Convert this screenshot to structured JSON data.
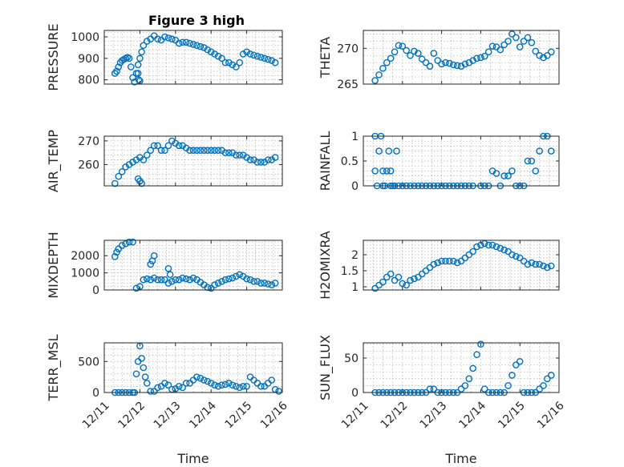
{
  "figure_title": "Figure 3 high",
  "chart_data": [
    {
      "id": "pressure",
      "type": "scatter",
      "ylabel": "PRESSURE",
      "yticks": [
        800,
        900,
        1000
      ],
      "ylim": [
        780,
        1030
      ],
      "xlim": [
        0,
        5
      ],
      "xlabel": "",
      "xticklabels": [],
      "x": [
        0.3,
        0.35,
        0.4,
        0.45,
        0.5,
        0.55,
        0.6,
        0.65,
        0.7,
        0.75,
        0.8,
        0.85,
        0.9,
        0.95,
        1.0,
        1.05,
        1.1,
        1.2,
        1.3,
        1.4,
        1.5,
        1.6,
        1.7,
        1.8,
        1.9,
        2.0,
        2.1,
        2.2,
        2.3,
        2.4,
        2.5,
        2.6,
        2.7,
        2.8,
        2.9,
        3.0,
        3.1,
        3.2,
        3.3,
        3.4,
        3.5,
        3.6,
        3.7,
        3.8,
        3.9,
        4.0,
        4.1,
        4.2,
        4.3,
        4.4,
        4.5,
        4.6,
        4.7,
        4.8,
        0.95,
        0.97,
        1.0
      ],
      "y": [
        830,
        840,
        860,
        880,
        890,
        895,
        900,
        905,
        900,
        860,
        810,
        790,
        830,
        870,
        900,
        930,
        960,
        980,
        990,
        1005,
        990,
        985,
        1000,
        995,
        990,
        985,
        970,
        975,
        975,
        970,
        965,
        960,
        955,
        950,
        940,
        930,
        920,
        910,
        900,
        880,
        880,
        870,
        860,
        880,
        920,
        930,
        920,
        915,
        910,
        905,
        900,
        895,
        890,
        880,
        830,
        800,
        795
      ]
    },
    {
      "id": "theta",
      "type": "scatter",
      "ylabel": "THETA",
      "yticks": [
        265,
        270
      ],
      "ylim": [
        265,
        272.5
      ],
      "xlim": [
        0,
        5
      ],
      "xlabel": "",
      "xticklabels": [],
      "x": [
        0.3,
        0.4,
        0.5,
        0.6,
        0.7,
        0.8,
        0.9,
        1.0,
        1.1,
        1.2,
        1.3,
        1.4,
        1.5,
        1.6,
        1.7,
        1.8,
        1.9,
        2.0,
        2.1,
        2.2,
        2.3,
        2.4,
        2.5,
        2.6,
        2.7,
        2.8,
        2.9,
        3.0,
        3.1,
        3.2,
        3.3,
        3.4,
        3.5,
        3.6,
        3.7,
        3.8,
        3.9,
        4.0,
        4.1,
        4.2,
        4.3,
        4.4,
        4.5,
        4.6,
        4.7,
        4.8
      ],
      "y": [
        265.5,
        266.3,
        267.2,
        268.0,
        268.6,
        269.5,
        270.4,
        270.3,
        269.7,
        269.0,
        269.6,
        269.3,
        268.5,
        268.0,
        267.5,
        269.3,
        268.3,
        267.8,
        268.0,
        267.9,
        267.7,
        267.6,
        267.5,
        267.8,
        268.0,
        268.3,
        268.6,
        268.7,
        268.9,
        269.5,
        270.3,
        270.2,
        269.8,
        270.5,
        271.0,
        272.0,
        271.5,
        270.2,
        271.0,
        271.5,
        270.8,
        269.6,
        269.0,
        268.7,
        269.0,
        269.5
      ]
    },
    {
      "id": "air_temp",
      "type": "scatter",
      "ylabel": "AIR_TEMP",
      "yticks": [
        260,
        270
      ],
      "ylim": [
        251,
        272
      ],
      "xlim": [
        0,
        5
      ],
      "xlabel": "",
      "xticklabels": [],
      "x": [
        0.3,
        0.4,
        0.5,
        0.6,
        0.7,
        0.8,
        0.9,
        1.0,
        1.1,
        1.2,
        1.3,
        1.4,
        1.5,
        1.6,
        1.7,
        1.8,
        1.9,
        2.0,
        2.1,
        2.2,
        2.3,
        2.4,
        2.5,
        2.6,
        2.7,
        2.8,
        2.9,
        3.0,
        3.1,
        3.2,
        3.3,
        3.4,
        3.5,
        3.6,
        3.7,
        3.8,
        3.9,
        4.0,
        4.1,
        4.2,
        4.3,
        4.4,
        4.5,
        4.6,
        4.7,
        4.8,
        0.95,
        1.0,
        1.05
      ],
      "y": [
        252,
        255,
        257,
        259,
        260,
        261,
        262,
        263,
        262,
        264,
        266,
        268,
        268,
        266,
        266,
        268,
        270,
        269,
        268,
        268,
        267,
        266,
        266,
        266,
        266,
        266,
        266,
        266,
        266,
        266,
        266,
        265,
        265,
        265,
        264,
        264,
        264,
        263,
        262,
        262,
        261,
        261,
        261,
        262,
        262,
        263,
        254,
        253,
        252
      ]
    },
    {
      "id": "rainfall",
      "type": "scatter",
      "ylabel": "RAINFALL",
      "yticks": [
        0,
        0.5,
        1
      ],
      "ylim": [
        0,
        1
      ],
      "xlim": [
        0,
        5
      ],
      "xlabel": "",
      "xticklabels": [],
      "x": [
        0.3,
        0.3,
        0.35,
        0.4,
        0.45,
        0.5,
        0.5,
        0.55,
        0.6,
        0.65,
        0.7,
        0.7,
        0.75,
        0.8,
        0.85,
        0.9,
        1.0,
        1.1,
        1.2,
        1.3,
        1.4,
        1.5,
        1.6,
        1.7,
        1.8,
        1.9,
        2.0,
        2.1,
        2.2,
        2.3,
        2.4,
        2.5,
        2.6,
        2.7,
        2.8,
        3.0,
        3.1,
        3.2,
        3.3,
        3.4,
        3.5,
        3.6,
        3.7,
        3.8,
        3.9,
        4.0,
        4.1,
        4.2,
        4.3,
        4.4,
        4.5,
        4.6,
        4.7,
        4.8
      ],
      "y": [
        0.3,
        1.0,
        0.0,
        0.7,
        1.0,
        0.3,
        0.0,
        0.0,
        0.3,
        0.7,
        0.0,
        0.3,
        0.0,
        0.0,
        0.7,
        0.0,
        0.0,
        0.0,
        0.0,
        0.0,
        0.0,
        0.0,
        0.0,
        0.0,
        0.0,
        0.0,
        0.0,
        0.0,
        0.0,
        0.0,
        0.0,
        0.0,
        0.0,
        0.0,
        0.0,
        0.0,
        0.0,
        0.0,
        0.3,
        0.25,
        0.0,
        0.2,
        0.2,
        0.3,
        0.0,
        0.0,
        0.0,
        0.5,
        0.5,
        0.3,
        0.7,
        1.0,
        1.0,
        0.7
      ]
    },
    {
      "id": "mixdepth",
      "type": "scatter",
      "ylabel": "MIXDEPTH",
      "yticks": [
        0,
        1000,
        2000
      ],
      "ylim": [
        0,
        2900
      ],
      "xlim": [
        0,
        5
      ],
      "xlabel": "",
      "xticklabels": [],
      "x": [
        0.3,
        0.35,
        0.4,
        0.5,
        0.6,
        0.7,
        0.8,
        0.9,
        1.0,
        1.1,
        1.2,
        1.3,
        1.4,
        1.5,
        1.6,
        1.7,
        1.8,
        1.9,
        2.0,
        2.1,
        2.2,
        2.3,
        2.4,
        2.5,
        2.6,
        2.7,
        2.8,
        2.9,
        3.0,
        3.1,
        3.2,
        3.3,
        3.4,
        3.5,
        3.6,
        3.7,
        3.8,
        3.9,
        4.0,
        4.1,
        4.2,
        4.3,
        4.4,
        4.5,
        4.6,
        4.7,
        4.8,
        1.3,
        1.35,
        1.4,
        1.8,
        1.85
      ],
      "y": [
        1950,
        2200,
        2400,
        2600,
        2700,
        2800,
        2800,
        100,
        200,
        600,
        650,
        600,
        700,
        600,
        600,
        600,
        400,
        500,
        600,
        600,
        700,
        650,
        600,
        700,
        600,
        450,
        300,
        150,
        100,
        300,
        400,
        500,
        600,
        650,
        700,
        800,
        900,
        800,
        650,
        600,
        500,
        500,
        400,
        400,
        350,
        300,
        400,
        1500,
        1700,
        2000,
        1250,
        900
      ]
    },
    {
      "id": "h2omixra",
      "type": "scatter",
      "ylabel": "H2OMIXRA",
      "yticks": [
        1,
        1.5,
        2
      ],
      "ylim": [
        0.9,
        2.45
      ],
      "xlim": [
        0,
        5
      ],
      "xlabel": "",
      "xticklabels": [],
      "x": [
        0.3,
        0.4,
        0.5,
        0.6,
        0.7,
        0.8,
        0.9,
        1.0,
        1.1,
        1.2,
        1.3,
        1.4,
        1.5,
        1.6,
        1.7,
        1.8,
        1.9,
        2.0,
        2.1,
        2.2,
        2.3,
        2.4,
        2.5,
        2.6,
        2.7,
        2.8,
        2.9,
        3.0,
        3.1,
        3.2,
        3.3,
        3.4,
        3.5,
        3.6,
        3.7,
        3.8,
        3.9,
        4.0,
        4.1,
        4.2,
        4.3,
        4.4,
        4.5,
        4.6,
        4.7,
        4.8
      ],
      "y": [
        0.95,
        1.05,
        1.15,
        1.3,
        1.4,
        1.2,
        1.3,
        1.1,
        1.05,
        1.2,
        1.25,
        1.3,
        1.4,
        1.5,
        1.6,
        1.7,
        1.75,
        1.8,
        1.8,
        1.8,
        1.8,
        1.75,
        1.8,
        1.9,
        2.0,
        2.1,
        2.25,
        2.3,
        2.35,
        2.3,
        2.3,
        2.25,
        2.2,
        2.15,
        2.1,
        2.0,
        1.95,
        1.9,
        1.8,
        1.7,
        1.75,
        1.7,
        1.7,
        1.65,
        1.6,
        1.65
      ]
    },
    {
      "id": "terr_msl",
      "type": "scatter",
      "ylabel": "TERR_MSL",
      "yticks": [
        0,
        500
      ],
      "ylim": [
        0,
        800
      ],
      "xlim": [
        0,
        5
      ],
      "xlabel": "Time",
      "xticklabels": [
        "12/11",
        "12/12",
        "12/13",
        "12/14",
        "12/15",
        "12/16"
      ],
      "x": [
        0.3,
        0.4,
        0.5,
        0.6,
        0.7,
        0.8,
        0.85,
        0.9,
        0.95,
        1.0,
        1.05,
        1.1,
        1.15,
        1.2,
        1.3,
        1.4,
        1.5,
        1.6,
        1.7,
        1.8,
        1.9,
        2.0,
        2.1,
        2.2,
        2.3,
        2.4,
        2.5,
        2.6,
        2.7,
        2.8,
        2.9,
        3.0,
        3.1,
        3.2,
        3.3,
        3.4,
        3.5,
        3.6,
        3.7,
        3.8,
        3.9,
        4.0,
        4.1,
        4.2,
        4.3,
        4.4,
        4.5,
        4.6,
        4.7,
        4.8,
        4.9
      ],
      "y": [
        0,
        0,
        0,
        0,
        0,
        0,
        0,
        300,
        500,
        750,
        550,
        400,
        250,
        150,
        20,
        20,
        80,
        100,
        150,
        120,
        50,
        60,
        100,
        80,
        150,
        150,
        200,
        250,
        230,
        200,
        180,
        150,
        120,
        100,
        120,
        130,
        150,
        120,
        100,
        80,
        100,
        100,
        250,
        200,
        150,
        100,
        100,
        150,
        200,
        50,
        20
      ]
    },
    {
      "id": "sun_flux",
      "type": "scatter",
      "ylabel": "SUN_FLUX",
      "yticks": [
        0,
        50
      ],
      "ylim": [
        0,
        72
      ],
      "xlim": [
        0,
        5
      ],
      "xlabel": "Time",
      "xticklabels": [
        "12/11",
        "12/12",
        "12/13",
        "12/14",
        "12/15",
        "12/16"
      ],
      "x": [
        0.3,
        0.4,
        0.5,
        0.6,
        0.7,
        0.8,
        0.9,
        1.0,
        1.1,
        1.2,
        1.3,
        1.4,
        1.5,
        1.6,
        1.7,
        1.8,
        1.9,
        2.0,
        2.1,
        2.2,
        2.3,
        2.4,
        2.5,
        2.6,
        2.7,
        2.8,
        2.9,
        3.0,
        3.1,
        3.2,
        3.3,
        3.4,
        3.5,
        3.6,
        3.7,
        3.8,
        3.9,
        4.0,
        4.1,
        4.2,
        4.3,
        4.4,
        4.5,
        4.6,
        4.7,
        4.8
      ],
      "y": [
        0,
        0,
        0,
        0,
        0,
        0,
        0,
        0,
        0,
        0,
        0,
        0,
        0,
        0,
        5,
        5,
        0,
        0,
        0,
        0,
        0,
        0,
        5,
        10,
        20,
        35,
        55,
        70,
        5,
        0,
        0,
        0,
        0,
        0,
        10,
        25,
        40,
        45,
        0,
        0,
        0,
        0,
        5,
        10,
        20,
        25
      ]
    }
  ]
}
